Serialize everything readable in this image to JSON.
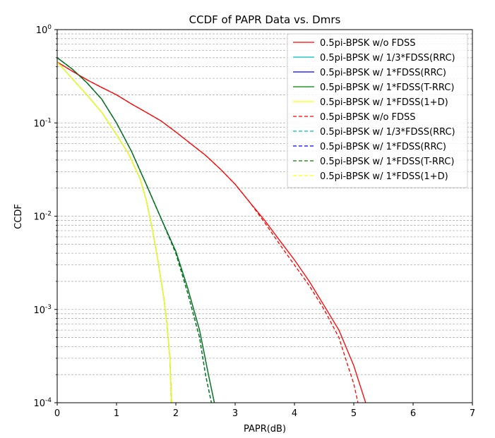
{
  "chart_data": {
    "type": "line",
    "title": "CCDF of PAPR Data vs. Dmrs",
    "xlabel": "PAPR(dB)",
    "ylabel": "CCDF",
    "xlim": [
      0,
      7
    ],
    "ylim": [
      0.0001,
      1
    ],
    "yscale": "log",
    "grid": "y-major-and-minor-dashed",
    "legend_position": "top-right",
    "x_ticks": [
      "0",
      "1",
      "2",
      "3",
      "4",
      "5",
      "6",
      "7"
    ],
    "series": [
      {
        "name": "0.5pi-BPSK w/o FDSS",
        "color": "#ff0000",
        "style": "solid",
        "x": [
          0,
          0.25,
          0.5,
          0.75,
          1.0,
          1.25,
          1.5,
          1.75,
          2.0,
          2.25,
          2.5,
          2.75,
          3.0,
          3.25,
          3.5,
          3.75,
          4.0,
          4.25,
          4.5,
          4.75,
          5.0,
          5.2
        ],
        "y": [
          0.45,
          0.36,
          0.29,
          0.24,
          0.2,
          0.16,
          0.13,
          0.105,
          0.08,
          0.06,
          0.045,
          0.032,
          0.022,
          0.014,
          0.009,
          0.0055,
          0.0034,
          0.002,
          0.0011,
          0.0006,
          0.00025,
          0.0001
        ]
      },
      {
        "name": "0.5pi-BPSK w/ 1/3*FDSS(RRC)",
        "color": "#00bfbf",
        "style": "solid",
        "x": [
          0,
          0.25,
          0.5,
          0.75,
          1.0,
          1.2,
          1.4,
          1.5,
          1.6,
          1.7,
          1.8,
          1.85,
          1.9,
          1.93
        ],
        "y": [
          0.45,
          0.3,
          0.2,
          0.13,
          0.075,
          0.047,
          0.025,
          0.015,
          0.0075,
          0.0033,
          0.0013,
          0.0007,
          0.0003,
          0.0001
        ]
      },
      {
        "name": "0.5pi-BPSK w/ 1*FDSS(RRC)",
        "color": "#0000ff",
        "style": "solid",
        "x": [
          0,
          0.25,
          0.5,
          0.75,
          1.0,
          1.25,
          1.5,
          1.75,
          2.0,
          2.2,
          2.4,
          2.55,
          2.65
        ],
        "y": [
          0.5,
          0.38,
          0.27,
          0.18,
          0.1,
          0.05,
          0.022,
          0.0095,
          0.0042,
          0.0017,
          0.0006,
          0.0002,
          0.0001
        ]
      },
      {
        "name": "0.5pi-BPSK w/ 1*FDSS(T-RRC)",
        "color": "#008000",
        "style": "solid",
        "x": [
          0,
          0.25,
          0.5,
          0.75,
          1.0,
          1.25,
          1.5,
          1.75,
          2.0,
          2.2,
          2.4,
          2.55,
          2.65
        ],
        "y": [
          0.5,
          0.38,
          0.27,
          0.18,
          0.1,
          0.05,
          0.022,
          0.0095,
          0.0042,
          0.0017,
          0.0006,
          0.0002,
          0.0001
        ]
      },
      {
        "name": "0.5pi-BPSK w/ 1*FDSS(1+D)",
        "color": "#ffff00",
        "style": "solid",
        "x": [
          0,
          0.25,
          0.5,
          0.75,
          1.0,
          1.2,
          1.4,
          1.5,
          1.6,
          1.7,
          1.8,
          1.85,
          1.9,
          1.93
        ],
        "y": [
          0.45,
          0.3,
          0.2,
          0.13,
          0.075,
          0.047,
          0.025,
          0.015,
          0.0075,
          0.0033,
          0.0013,
          0.0007,
          0.0003,
          0.0001
        ]
      },
      {
        "name": "0.5pi-BPSK w/o FDSS",
        "color": "#ff0000",
        "style": "dashed",
        "x": [
          0,
          0.25,
          0.5,
          0.75,
          1.0,
          1.25,
          1.5,
          1.75,
          2.0,
          2.25,
          2.5,
          2.75,
          3.0,
          3.25,
          3.5,
          3.75,
          4.0,
          4.25,
          4.5,
          4.75,
          4.9,
          5.0,
          5.07
        ],
        "y": [
          0.45,
          0.36,
          0.29,
          0.24,
          0.2,
          0.16,
          0.13,
          0.105,
          0.08,
          0.06,
          0.045,
          0.032,
          0.022,
          0.014,
          0.0085,
          0.005,
          0.003,
          0.0018,
          0.001,
          0.0005,
          0.00025,
          0.00016,
          0.0001
        ]
      },
      {
        "name": "0.5pi-BPSK w/ 1/3*FDSS(RRC)",
        "color": "#00bfbf",
        "style": "dashed",
        "x": [
          0,
          0.25,
          0.5,
          0.75,
          1.0,
          1.2,
          1.4,
          1.5,
          1.6,
          1.7,
          1.8,
          1.85,
          1.9,
          1.92
        ],
        "y": [
          0.45,
          0.3,
          0.2,
          0.13,
          0.075,
          0.047,
          0.025,
          0.015,
          0.0075,
          0.0033,
          0.0013,
          0.0007,
          0.0003,
          0.0001
        ]
      },
      {
        "name": "0.5pi-BPSK w/ 1*FDSS(RRC)",
        "color": "#0000ff",
        "style": "dashed",
        "x": [
          0,
          0.25,
          0.5,
          0.75,
          1.0,
          1.25,
          1.5,
          1.75,
          2.0,
          2.2,
          2.4,
          2.5,
          2.6
        ],
        "y": [
          0.5,
          0.38,
          0.27,
          0.18,
          0.1,
          0.05,
          0.022,
          0.0095,
          0.004,
          0.0015,
          0.0005,
          0.0002,
          0.0001
        ]
      },
      {
        "name": "0.5pi-BPSK w/ 1*FDSS(T-RRC)",
        "color": "#008000",
        "style": "dashed",
        "x": [
          0,
          0.25,
          0.5,
          0.75,
          1.0,
          1.25,
          1.5,
          1.75,
          2.0,
          2.2,
          2.4,
          2.5,
          2.6
        ],
        "y": [
          0.5,
          0.38,
          0.27,
          0.18,
          0.1,
          0.05,
          0.022,
          0.0095,
          0.004,
          0.0015,
          0.0005,
          0.0002,
          0.0001
        ]
      },
      {
        "name": "0.5pi-BPSK w/ 1*FDSS(1+D)",
        "color": "#ffff00",
        "style": "dashed",
        "x": [
          0,
          0.25,
          0.5,
          0.75,
          1.0,
          1.2,
          1.4,
          1.5,
          1.6,
          1.7,
          1.8,
          1.85,
          1.9,
          1.92
        ],
        "y": [
          0.45,
          0.3,
          0.2,
          0.13,
          0.075,
          0.047,
          0.025,
          0.015,
          0.0075,
          0.0033,
          0.0013,
          0.0007,
          0.0003,
          0.0001
        ]
      }
    ]
  }
}
